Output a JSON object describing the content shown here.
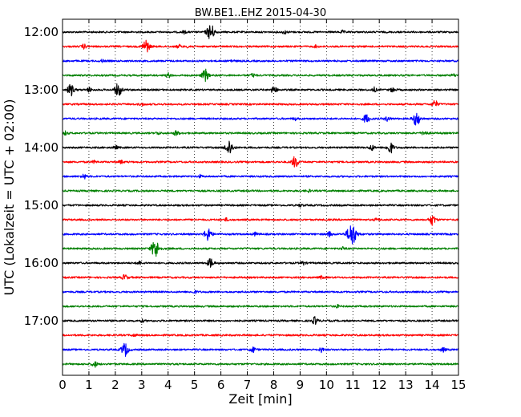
{
  "chart_data": {
    "type": "line",
    "title": "BW.BE1..EHZ 2015-04-30",
    "xlabel": "Zeit  [min]",
    "ylabel": "UTC (Lokalzeit = UTC + 02:00)",
    "xlim": [
      0,
      15
    ],
    "x_ticks": [
      "0",
      "1",
      "2",
      "3",
      "4",
      "5",
      "6",
      "7",
      "8",
      "9",
      "10",
      "11",
      "12",
      "13",
      "14",
      "15"
    ],
    "y_tick_labels": [
      "12:00",
      "13:00",
      "14:00",
      "15:00",
      "16:00",
      "17:00"
    ],
    "grid": true,
    "grid_style": "dotted vertical at each minute",
    "row_interval_minutes": 15,
    "row_colors": [
      "#000000",
      "#ff0000",
      "#0000ff",
      "#008000"
    ],
    "traces": [
      {
        "start": "12:00",
        "events": [
          [
            5.6,
            1.0
          ],
          [
            8.4,
            0.2
          ],
          [
            4.6,
            0.15
          ],
          [
            10.6,
            0.15
          ]
        ]
      },
      {
        "start": "12:15",
        "events": [
          [
            3.15,
            0.8
          ],
          [
            0.8,
            0.25
          ],
          [
            4.4,
            0.2
          ],
          [
            4.8,
            0.2
          ],
          [
            9.6,
            0.15
          ]
        ]
      },
      {
        "start": "12:30",
        "events": [
          [
            1.5,
            0.15
          ],
          [
            6.4,
            0.15
          ]
        ]
      },
      {
        "start": "12:45",
        "events": [
          [
            5.4,
            0.7
          ],
          [
            4.0,
            0.25
          ],
          [
            7.2,
            0.2
          ],
          [
            14.8,
            0.15
          ]
        ]
      },
      {
        "start": "13:00",
        "events": [
          [
            0.3,
            0.7
          ],
          [
            2.1,
            0.8
          ],
          [
            1.0,
            0.25
          ],
          [
            8.0,
            0.45
          ],
          [
            11.8,
            0.25
          ],
          [
            12.5,
            0.25
          ]
        ]
      },
      {
        "start": "13:15",
        "events": [
          [
            14.1,
            0.45
          ],
          [
            3.0,
            0.15
          ]
        ]
      },
      {
        "start": "13:30",
        "events": [
          [
            13.4,
            0.85
          ],
          [
            11.5,
            0.55
          ],
          [
            12.3,
            0.3
          ],
          [
            8.8,
            0.15
          ]
        ]
      },
      {
        "start": "13:45",
        "events": [
          [
            4.3,
            0.3
          ],
          [
            13.7,
            0.3
          ],
          [
            0.1,
            0.2
          ],
          [
            3.6,
            0.15
          ]
        ]
      },
      {
        "start": "14:00",
        "events": [
          [
            6.3,
            0.9
          ],
          [
            12.4,
            0.7
          ],
          [
            11.7,
            0.35
          ],
          [
            2.0,
            0.2
          ]
        ]
      },
      {
        "start": "14:15",
        "events": [
          [
            8.8,
            0.7
          ],
          [
            2.2,
            0.2
          ],
          [
            1.2,
            0.15
          ]
        ]
      },
      {
        "start": "14:30",
        "events": [
          [
            0.8,
            0.3
          ],
          [
            5.2,
            0.15
          ]
        ]
      },
      {
        "start": "14:45",
        "events": [
          [
            9.3,
            0.15
          ]
        ]
      },
      {
        "start": "15:00",
        "events": [
          [
            9.0,
            0.15
          ]
        ]
      },
      {
        "start": "15:15",
        "events": [
          [
            14.0,
            0.6
          ],
          [
            11.9,
            0.2
          ],
          [
            6.2,
            0.15
          ]
        ]
      },
      {
        "start": "15:30",
        "events": [
          [
            10.95,
            1.4
          ],
          [
            5.5,
            0.8
          ],
          [
            10.1,
            0.3
          ],
          [
            7.3,
            0.2
          ]
        ]
      },
      {
        "start": "15:45",
        "events": [
          [
            3.5,
            1.1
          ],
          [
            10.6,
            0.15
          ]
        ]
      },
      {
        "start": "16:00",
        "events": [
          [
            5.6,
            0.55
          ],
          [
            2.9,
            0.2
          ],
          [
            9.1,
            0.2
          ]
        ]
      },
      {
        "start": "16:15",
        "events": [
          [
            2.35,
            0.35
          ],
          [
            9.8,
            0.15
          ]
        ]
      },
      {
        "start": "16:30",
        "events": [
          [
            5.0,
            0.15
          ]
        ]
      },
      {
        "start": "16:45",
        "events": [
          [
            10.4,
            0.15
          ]
        ]
      },
      {
        "start": "17:00",
        "events": [
          [
            9.55,
            0.45
          ],
          [
            3.0,
            0.15
          ]
        ]
      },
      {
        "start": "17:15",
        "events": [
          [
            2.7,
            0.15
          ]
        ]
      },
      {
        "start": "17:30",
        "events": [
          [
            2.35,
            0.8
          ],
          [
            7.2,
            0.35
          ],
          [
            9.8,
            0.25
          ],
          [
            14.4,
            0.25
          ]
        ]
      },
      {
        "start": "17:45",
        "events": [
          [
            1.2,
            0.35
          ]
        ]
      }
    ]
  }
}
